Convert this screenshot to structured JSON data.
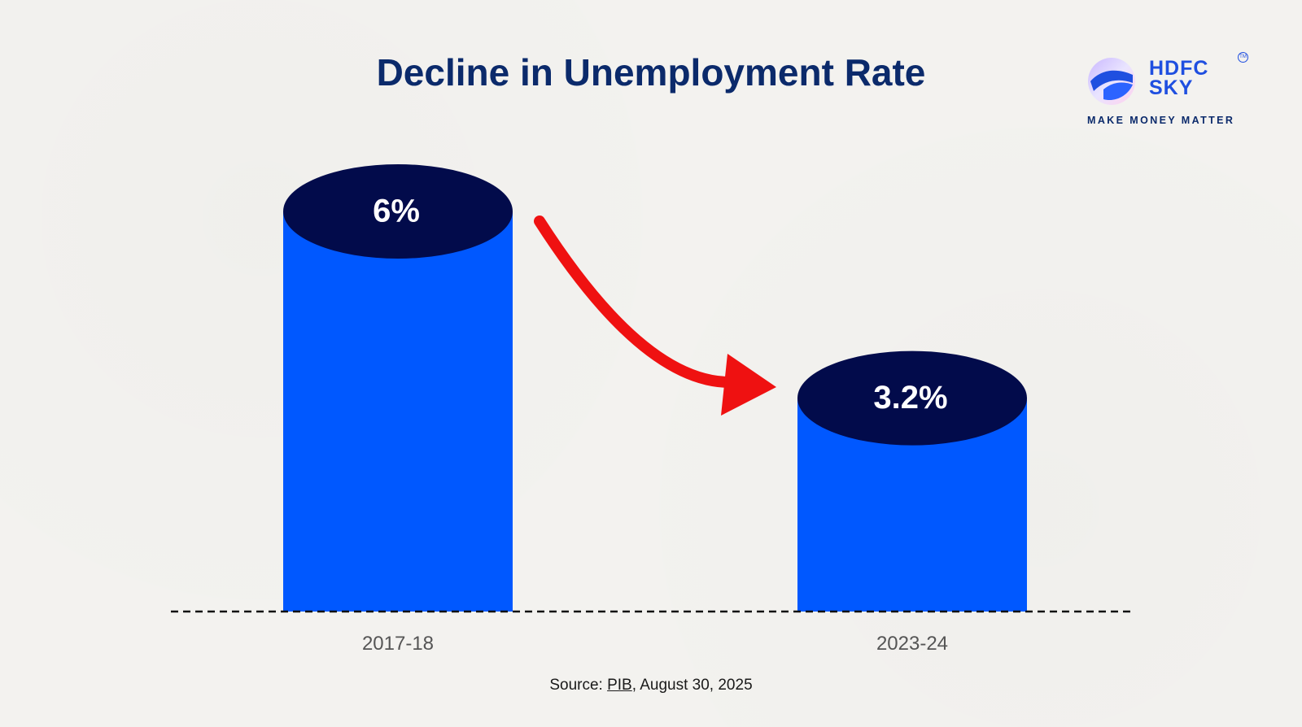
{
  "brand": {
    "name_line1": "HDFC",
    "name_line2": "SKY",
    "trademark": "TM",
    "tagline": "MAKE MONEY MATTER",
    "colors": {
      "primary": "#1f4fe0",
      "navy": "#0b2a6b"
    },
    "icon": "hdfc-sky-logo-icon"
  },
  "chart_data": {
    "type": "bar",
    "title": "Decline in Unemployment Rate",
    "categories": [
      "2017-18",
      "2023-24"
    ],
    "values": [
      6,
      3.2
    ],
    "value_labels": [
      "6%",
      "3.2%"
    ],
    "unit": "%",
    "ylim": [
      0,
      6
    ],
    "grid": false,
    "legend": "none",
    "annotation": "red-curved-arrow-decline",
    "colors": {
      "bar": "#0058ff",
      "cap": "#020b4b",
      "arrow": "#ef1111",
      "baseline": "#111111",
      "label": "#555555"
    }
  },
  "source": {
    "prefix": "Source: ",
    "link_text": "PIB",
    "suffix": ", August 30, 2025"
  }
}
